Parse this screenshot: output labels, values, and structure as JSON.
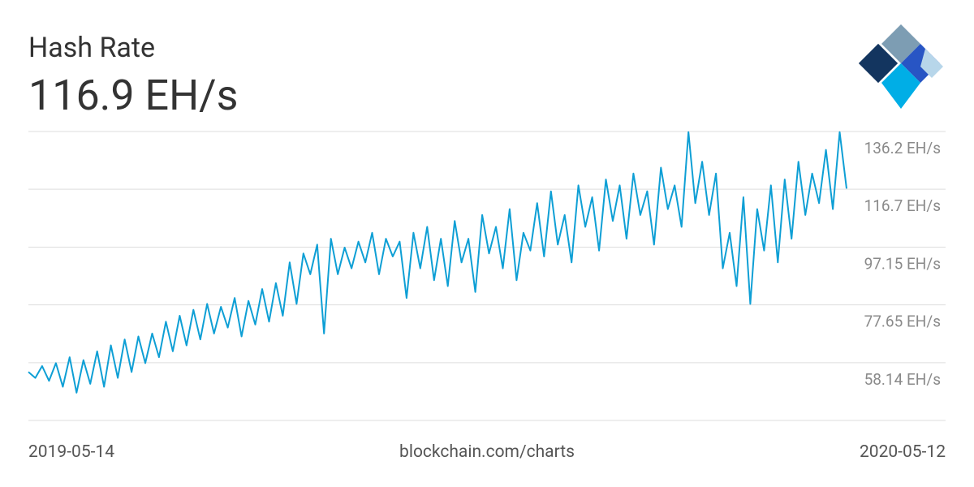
{
  "chart_data": {
    "type": "line",
    "title": "Hash Rate",
    "subtitle": "116.9 EH/s",
    "start_date": "2019-05-14",
    "end_date": "2020-05-12",
    "source": "blockchain.com/charts",
    "color": "#0e9fd5",
    "grid": true,
    "ylim": [
      38.64,
      136.2
    ],
    "yticks": [
      {
        "value": 136.2,
        "label": "136.2 EH/s"
      },
      {
        "value": 116.7,
        "label": "116.7 EH/s"
      },
      {
        "value": 97.15,
        "label": "97.15 EH/s"
      },
      {
        "value": 77.65,
        "label": "77.65 EH/s"
      },
      {
        "value": 58.14,
        "label": "58.14 EH/s"
      }
    ],
    "values": [
      55,
      53,
      57,
      52,
      58,
      50,
      60,
      48,
      59,
      51,
      62,
      50,
      64,
      53,
      66,
      55,
      67,
      58,
      68,
      60,
      72,
      62,
      74,
      64,
      76,
      66,
      78,
      68,
      77,
      70,
      80,
      67,
      79,
      71,
      83,
      72,
      85,
      74,
      92,
      78,
      95,
      88,
      98,
      68,
      100,
      88,
      97,
      90,
      99,
      92,
      102,
      88,
      100,
      94,
      99,
      80,
      102,
      90,
      104,
      86,
      100,
      84,
      106,
      92,
      100,
      82,
      108,
      95,
      104,
      90,
      110,
      86,
      102,
      96,
      112,
      94,
      116,
      98,
      108,
      92,
      118,
      104,
      114,
      96,
      120,
      106,
      118,
      100,
      122,
      108,
      116,
      98,
      124,
      110,
      118,
      104,
      136,
      112,
      126,
      108,
      122,
      90,
      102,
      84,
      114,
      78,
      110,
      96,
      118,
      92,
      120,
      100,
      126,
      108,
      122,
      112,
      130,
      110,
      136,
      116.9
    ]
  }
}
